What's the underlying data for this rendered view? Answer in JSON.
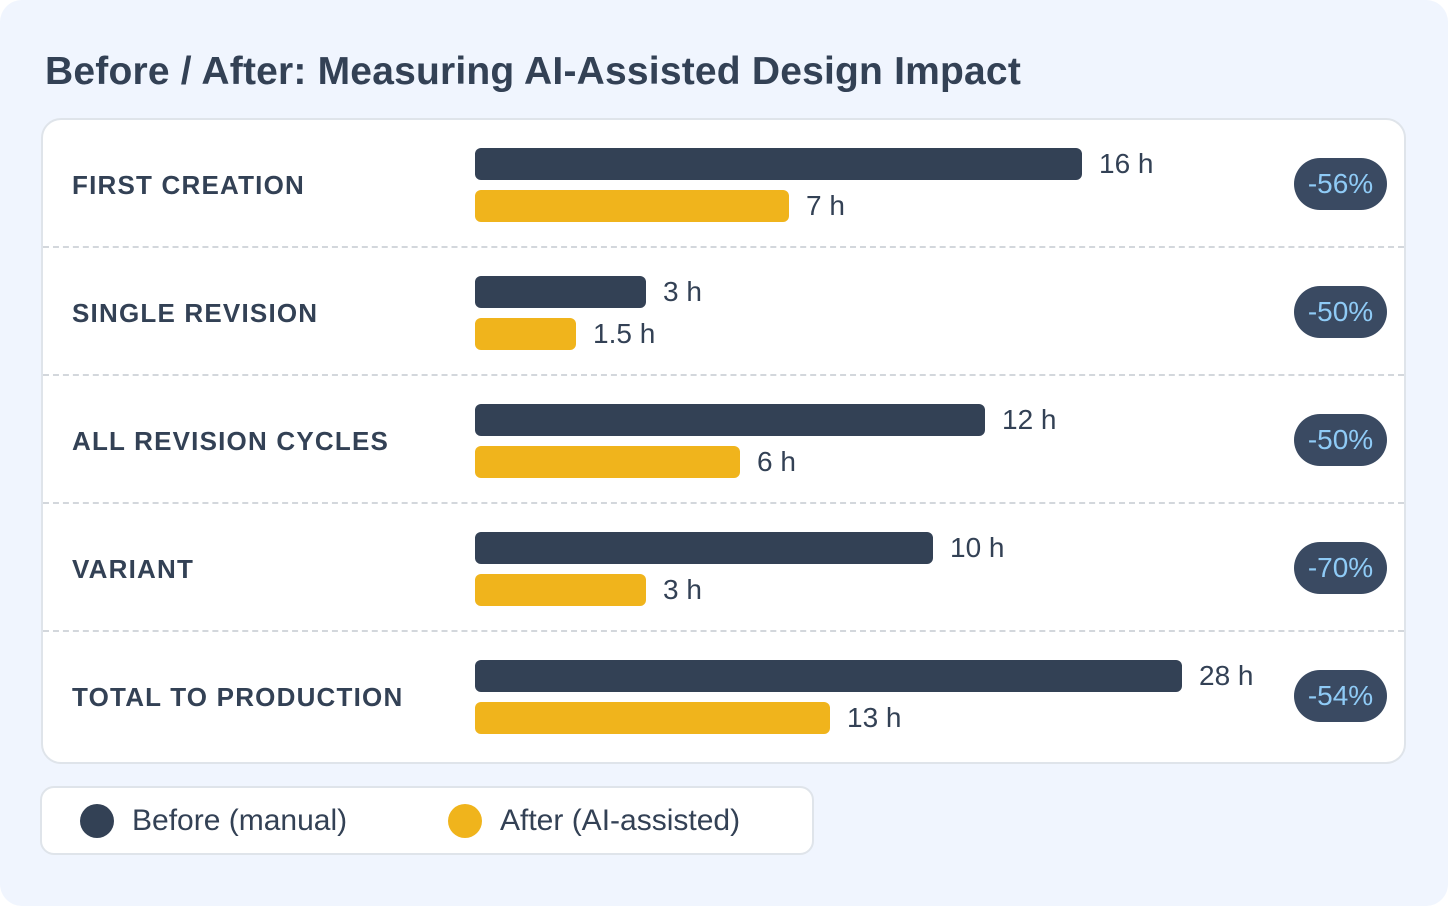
{
  "chart_data": {
    "type": "bar",
    "orientation": "horizontal",
    "title": "Before / After: Measuring AI-Assisted Design Impact",
    "categories": [
      "FIRST CREATION",
      "SINGLE REVISION",
      "ALL REVISION CYCLES",
      "VARIANT",
      "TOTAL TO PRODUCTION"
    ],
    "unit": "h",
    "series": [
      {
        "name": "Before (manual)",
        "color": "#334155",
        "values": [
          16,
          3,
          12,
          10,
          28
        ],
        "labels": [
          "16 h",
          "3 h",
          "12 h",
          "10 h",
          "28 h"
        ]
      },
      {
        "name": "After (AI-assisted)",
        "color": "#f0b41c",
        "values": [
          7,
          1.5,
          6,
          3,
          13
        ],
        "labels": [
          "7 h",
          "1.5 h",
          "6 h",
          "3 h",
          "13 h"
        ]
      }
    ],
    "change_badges": [
      "-56%",
      "-50%",
      "-50%",
      "-70%",
      "-54%"
    ],
    "badge_colors": {
      "background": "#3a4a62",
      "text": "#8fcbf6"
    },
    "legend_position": "bottom-left",
    "grid": false
  }
}
